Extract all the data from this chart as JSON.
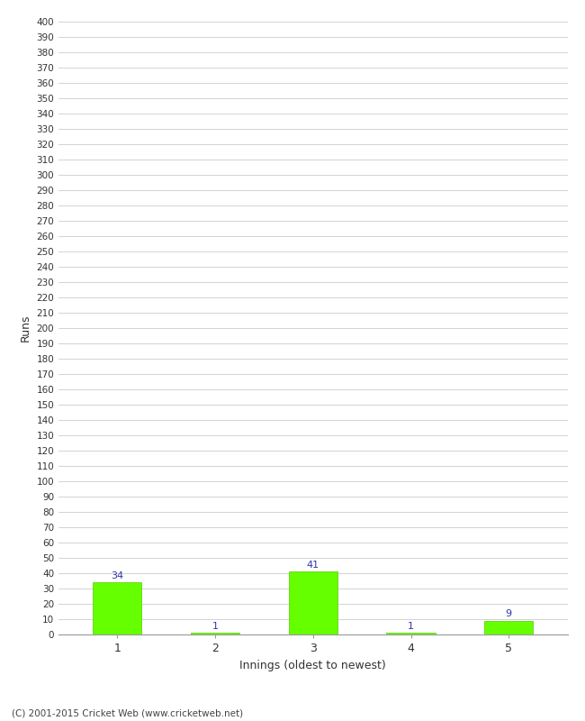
{
  "categories": [
    1,
    2,
    3,
    4,
    5
  ],
  "values": [
    34,
    1,
    41,
    1,
    9
  ],
  "bar_color": "#66ff00",
  "bar_edge_color": "#55cc00",
  "label_color": "#3333aa",
  "xlabel": "Innings (oldest to newest)",
  "ylabel": "Runs",
  "ylim": [
    0,
    400
  ],
  "ytick_step": 10,
  "background_color": "#ffffff",
  "grid_color": "#cccccc",
  "footer": "(C) 2001-2015 Cricket Web (www.cricketweb.net)"
}
